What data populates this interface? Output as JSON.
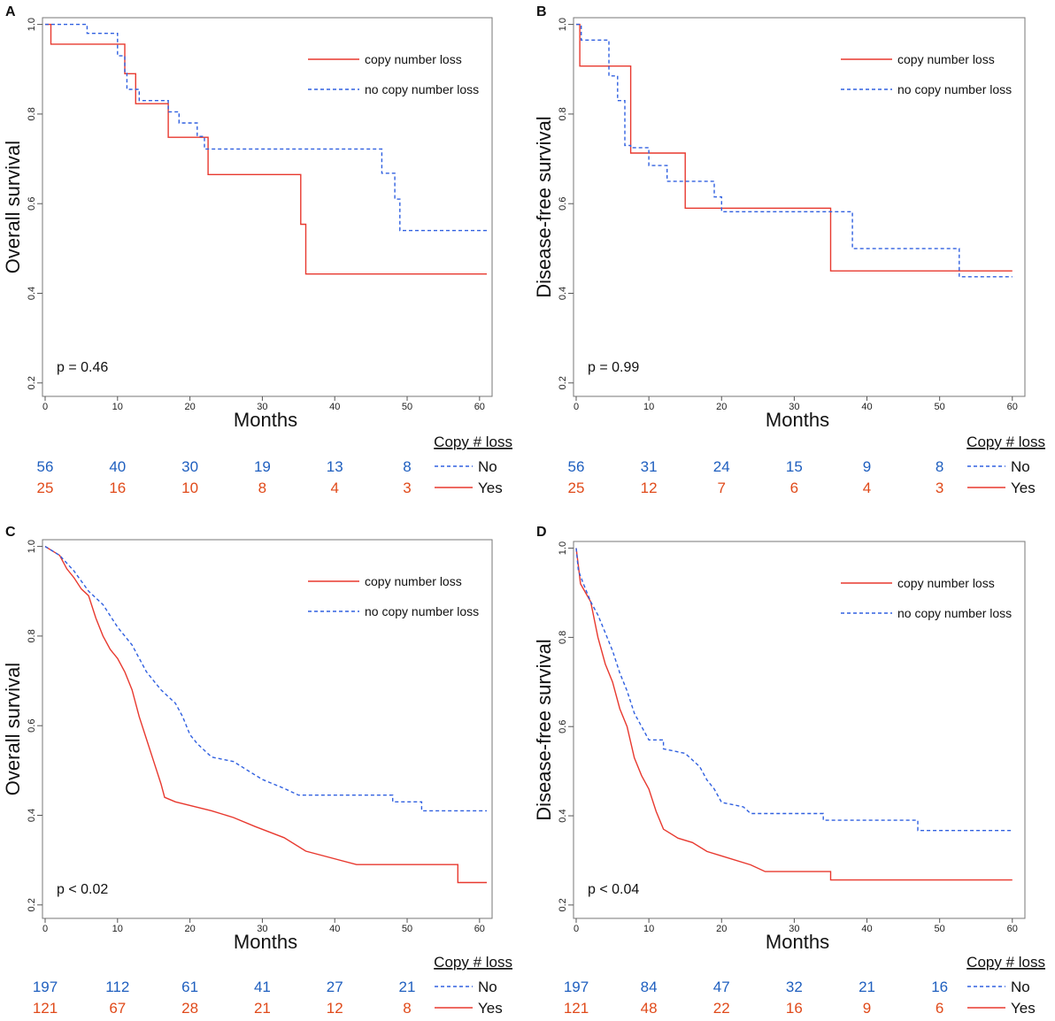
{
  "colors": {
    "loss": "#e8392f",
    "no_loss": "#3060e0",
    "num_blue": "#1f5fbf",
    "num_red": "#e04a1a"
  },
  "chart_data": [
    {
      "type": "line",
      "panel": "A",
      "title": "",
      "xlabel": "Months",
      "ylabel": "Overall survival",
      "xlim": [
        0,
        60
      ],
      "ylim": [
        0.2,
        1.0
      ],
      "xticks": [
        "0",
        "10",
        "20",
        "30",
        "40",
        "50",
        "60"
      ],
      "yticks": [
        "0.2",
        "0.4",
        "0.6",
        "0.8",
        "1.0"
      ],
      "legend": {
        "loss": "copy number loss",
        "no_loss": "no copy number loss",
        "position": "top-right"
      },
      "pvalue": "p = 0.46",
      "series": [
        {
          "name": "copy number loss",
          "style": "solid",
          "points": [
            [
              0,
              1
            ],
            [
              0.8,
              1
            ],
            [
              0.8,
              0.956
            ],
            [
              11,
              0.956
            ],
            [
              11,
              0.89
            ],
            [
              12.5,
              0.89
            ],
            [
              12.5,
              0.823
            ],
            [
              17,
              0.823
            ],
            [
              17,
              0.748
            ],
            [
              22.5,
              0.748
            ],
            [
              22.5,
              0.665
            ],
            [
              35.3,
              0.665
            ],
            [
              35.3,
              0.554
            ],
            [
              36,
              0.554
            ],
            [
              36,
              0.443
            ],
            [
              61,
              0.443
            ]
          ]
        },
        {
          "name": "no copy number loss",
          "style": "dashed",
          "points": [
            [
              0,
              1
            ],
            [
              5.8,
              1
            ],
            [
              5.8,
              0.98
            ],
            [
              10,
              0.98
            ],
            [
              10,
              0.93
            ],
            [
              11,
              0.93
            ],
            [
              11,
              0.895
            ],
            [
              11.3,
              0.895
            ],
            [
              11.3,
              0.855
            ],
            [
              13,
              0.855
            ],
            [
              13,
              0.83
            ],
            [
              17,
              0.83
            ],
            [
              17,
              0.805
            ],
            [
              18.5,
              0.805
            ],
            [
              18.5,
              0.78
            ],
            [
              21,
              0.78
            ],
            [
              21,
              0.75
            ],
            [
              22,
              0.75
            ],
            [
              22,
              0.722
            ],
            [
              46.5,
              0.722
            ],
            [
              46.5,
              0.668
            ],
            [
              48.3,
              0.668
            ],
            [
              48.3,
              0.61
            ],
            [
              49,
              0.61
            ],
            [
              49,
              0.54
            ],
            [
              61,
              0.54
            ]
          ]
        }
      ],
      "risk_table": {
        "title": "Copy # loss",
        "rows": [
          {
            "label": "No",
            "values": [
              "56",
              "40",
              "30",
              "19",
              "13",
              "8"
            ]
          },
          {
            "label": "Yes",
            "values": [
              "25",
              "16",
              "10",
              "8",
              "4",
              "3"
            ]
          }
        ]
      }
    },
    {
      "type": "line",
      "panel": "B",
      "title": "",
      "xlabel": "Months",
      "ylabel": "Disease-free survival",
      "xlim": [
        0,
        60
      ],
      "ylim": [
        0.2,
        1.0
      ],
      "xticks": [
        "0",
        "10",
        "20",
        "30",
        "40",
        "50",
        "60"
      ],
      "yticks": [
        "0.2",
        "0.4",
        "0.6",
        "0.8",
        "1.0"
      ],
      "legend": {
        "loss": "copy number loss",
        "no_loss": "no copy number loss",
        "position": "top-right"
      },
      "pvalue": "p = 0.99",
      "series": [
        {
          "name": "copy number loss",
          "style": "solid",
          "points": [
            [
              0,
              1
            ],
            [
              0.5,
              1
            ],
            [
              0.5,
              0.907
            ],
            [
              7.5,
              0.907
            ],
            [
              7.5,
              0.713
            ],
            [
              15,
              0.713
            ],
            [
              15,
              0.59
            ],
            [
              35,
              0.59
            ],
            [
              35,
              0.45
            ],
            [
              60,
              0.45
            ]
          ]
        },
        {
          "name": "no copy number loss",
          "style": "dashed",
          "points": [
            [
              0,
              1
            ],
            [
              0.7,
              1
            ],
            [
              0.7,
              0.965
            ],
            [
              4.5,
              0.965
            ],
            [
              4.5,
              0.885
            ],
            [
              5.7,
              0.885
            ],
            [
              5.7,
              0.83
            ],
            [
              6.7,
              0.83
            ],
            [
              6.7,
              0.73
            ],
            [
              7.5,
              0.73
            ],
            [
              7.5,
              0.725
            ],
            [
              10,
              0.725
            ],
            [
              10,
              0.685
            ],
            [
              12.5,
              0.685
            ],
            [
              12.5,
              0.65
            ],
            [
              19,
              0.65
            ],
            [
              19,
              0.615
            ],
            [
              20,
              0.615
            ],
            [
              20,
              0.582
            ],
            [
              38,
              0.582
            ],
            [
              38,
              0.5
            ],
            [
              52.7,
              0.5
            ],
            [
              52.7,
              0.437
            ],
            [
              60,
              0.437
            ]
          ]
        }
      ],
      "risk_table": {
        "title": "Copy # loss",
        "rows": [
          {
            "label": "No",
            "values": [
              "56",
              "31",
              "24",
              "15",
              "9",
              "8"
            ]
          },
          {
            "label": "Yes",
            "values": [
              "25",
              "12",
              "7",
              "6",
              "4",
              "3"
            ]
          }
        ]
      }
    },
    {
      "type": "line",
      "panel": "C",
      "title": "",
      "xlabel": "Months",
      "ylabel": "Overall survival",
      "xlim": [
        0,
        60
      ],
      "ylim": [
        0.2,
        1.0
      ],
      "xticks": [
        "0",
        "10",
        "20",
        "30",
        "40",
        "50",
        "60"
      ],
      "yticks": [
        "0.2",
        "0.4",
        "0.6",
        "0.8",
        "1.0"
      ],
      "legend": {
        "loss": "copy number loss",
        "no_loss": "no copy number loss",
        "position": "top-right"
      },
      "pvalue": "p < 0.02",
      "series": [
        {
          "name": "copy number loss",
          "style": "solid",
          "points": [
            [
              0,
              1
            ],
            [
              1,
              0.99
            ],
            [
              2,
              0.98
            ],
            [
              3,
              0.95
            ],
            [
              4,
              0.93
            ],
            [
              5,
              0.905
            ],
            [
              6,
              0.89
            ],
            [
              7,
              0.84
            ],
            [
              8,
              0.8
            ],
            [
              9,
              0.77
            ],
            [
              10,
              0.75
            ],
            [
              11,
              0.72
            ],
            [
              12,
              0.68
            ],
            [
              13,
              0.62
            ],
            [
              14,
              0.57
            ],
            [
              15,
              0.52
            ],
            [
              16,
              0.47
            ],
            [
              16.5,
              0.44
            ],
            [
              18,
              0.43
            ],
            [
              23,
              0.41
            ],
            [
              26,
              0.395
            ],
            [
              29,
              0.375
            ],
            [
              33,
              0.35
            ],
            [
              36,
              0.32
            ],
            [
              43,
              0.29
            ],
            [
              57,
              0.29
            ],
            [
              57,
              0.25
            ],
            [
              61,
              0.25
            ]
          ]
        },
        {
          "name": "no copy number loss",
          "style": "dashed",
          "points": [
            [
              0,
              1
            ],
            [
              2,
              0.98
            ],
            [
              4,
              0.945
            ],
            [
              6,
              0.9
            ],
            [
              8,
              0.87
            ],
            [
              10,
              0.82
            ],
            [
              12,
              0.78
            ],
            [
              14,
              0.72
            ],
            [
              16,
              0.68
            ],
            [
              18,
              0.65
            ],
            [
              19,
              0.62
            ],
            [
              20,
              0.58
            ],
            [
              21,
              0.56
            ],
            [
              23,
              0.53
            ],
            [
              26,
              0.52
            ],
            [
              28,
              0.5
            ],
            [
              30,
              0.48
            ],
            [
              33,
              0.46
            ],
            [
              35,
              0.445
            ],
            [
              48,
              0.445
            ],
            [
              48,
              0.43
            ],
            [
              52,
              0.43
            ],
            [
              52,
              0.41
            ],
            [
              61,
              0.41
            ]
          ]
        }
      ],
      "risk_table": {
        "title": "Copy # loss",
        "rows": [
          {
            "label": "No",
            "values": [
              "197",
              "112",
              "61",
              "41",
              "27",
              "21"
            ]
          },
          {
            "label": "Yes",
            "values": [
              "121",
              "67",
              "28",
              "21",
              "12",
              "8"
            ]
          }
        ]
      }
    },
    {
      "type": "line",
      "panel": "D",
      "title": "",
      "xlabel": "Months",
      "ylabel": "Disease-free survival",
      "xlim": [
        0,
        60
      ],
      "ylim": [
        0.2,
        1.0
      ],
      "xticks": [
        "0",
        "10",
        "20",
        "30",
        "40",
        "50",
        "60"
      ],
      "yticks": [
        "0.2",
        "0.4",
        "0.6",
        "0.8",
        "1.0"
      ],
      "legend": {
        "loss": "copy number loss",
        "no_loss": "no copy number loss",
        "position": "top-right"
      },
      "pvalue": "p < 0.04",
      "series": [
        {
          "name": "copy number loss",
          "style": "solid",
          "points": [
            [
              0,
              1
            ],
            [
              0.3,
              0.96
            ],
            [
              0.6,
              0.92
            ],
            [
              2,
              0.88
            ],
            [
              3,
              0.8
            ],
            [
              4,
              0.74
            ],
            [
              5,
              0.7
            ],
            [
              6,
              0.64
            ],
            [
              7,
              0.6
            ],
            [
              8,
              0.53
            ],
            [
              9,
              0.49
            ],
            [
              10,
              0.46
            ],
            [
              11,
              0.41
            ],
            [
              12,
              0.37
            ],
            [
              14,
              0.35
            ],
            [
              16,
              0.34
            ],
            [
              18,
              0.32
            ],
            [
              20,
              0.31
            ],
            [
              24,
              0.29
            ],
            [
              26,
              0.275
            ],
            [
              35,
              0.275
            ],
            [
              35,
              0.256
            ],
            [
              60,
              0.256
            ]
          ]
        },
        {
          "name": "no copy number loss",
          "style": "dashed",
          "points": [
            [
              0,
              1
            ],
            [
              0.3,
              0.95
            ],
            [
              1,
              0.92
            ],
            [
              2,
              0.88
            ],
            [
              3,
              0.85
            ],
            [
              4,
              0.81
            ],
            [
              5,
              0.77
            ],
            [
              6,
              0.72
            ],
            [
              7,
              0.68
            ],
            [
              8,
              0.63
            ],
            [
              9,
              0.6
            ],
            [
              10,
              0.57
            ],
            [
              12,
              0.57
            ],
            [
              12,
              0.55
            ],
            [
              15,
              0.54
            ],
            [
              17,
              0.51
            ],
            [
              18,
              0.48
            ],
            [
              19,
              0.46
            ],
            [
              20,
              0.43
            ],
            [
              23,
              0.42
            ],
            [
              24,
              0.405
            ],
            [
              34,
              0.405
            ],
            [
              34,
              0.39
            ],
            [
              47,
              0.39
            ],
            [
              47,
              0.367
            ],
            [
              60,
              0.367
            ]
          ]
        }
      ],
      "risk_table": {
        "title": "Copy # loss",
        "rows": [
          {
            "label": "No",
            "values": [
              "197",
              "84",
              "47",
              "32",
              "21",
              "16"
            ]
          },
          {
            "label": "Yes",
            "values": [
              "121",
              "48",
              "22",
              "16",
              "9",
              "6"
            ]
          }
        ]
      }
    }
  ]
}
